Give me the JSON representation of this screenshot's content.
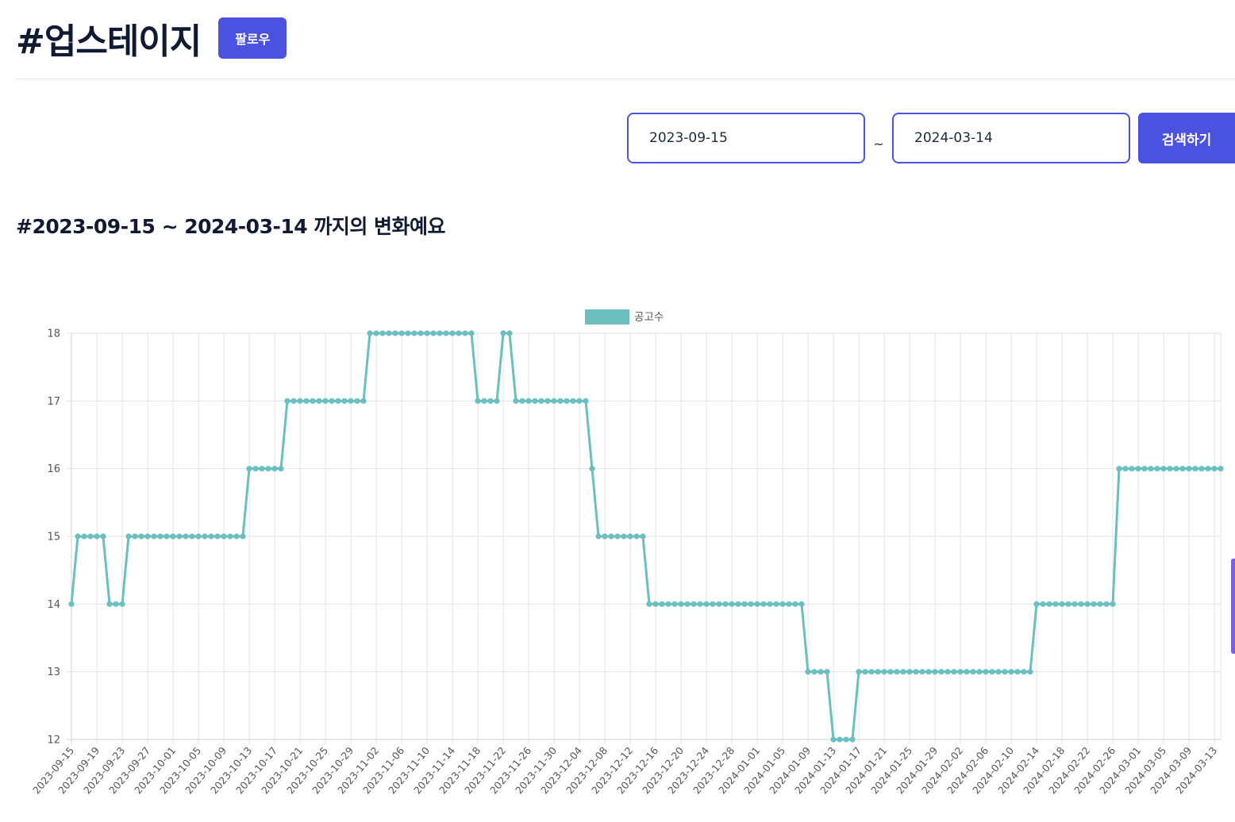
{
  "header": {
    "title": "#업스테이지",
    "follow_label": "팔로우"
  },
  "search": {
    "start_date": "2023-09-15",
    "end_date": "2024-03-14",
    "separator": "~",
    "button_label": "검색하기"
  },
  "section": {
    "heading": "#2023-09-15 ~ 2024-03-14 까지의 변화예요"
  },
  "colors": {
    "accent": "#4b52e0",
    "series": "#6bbfbf"
  },
  "chart_data": {
    "type": "line",
    "title": "",
    "xlabel": "",
    "ylabel": "",
    "ylim": [
      12,
      18
    ],
    "yticks": [
      12,
      13,
      14,
      15,
      16,
      17,
      18
    ],
    "grid": true,
    "legend_position": "top-center",
    "x_start": "2023-09-15",
    "x_end": "2024-03-14",
    "x_tick_labels": [
      "2023-09-15",
      "2023-09-19",
      "2023-09-23",
      "2023-09-27",
      "2023-10-01",
      "2023-10-05",
      "2023-10-09",
      "2023-10-13",
      "2023-10-17",
      "2023-10-21",
      "2023-10-25",
      "2023-10-29",
      "2023-11-02",
      "2023-11-06",
      "2023-11-10",
      "2023-11-14",
      "2023-11-18",
      "2023-11-22",
      "2023-11-26",
      "2023-11-30",
      "2023-12-04",
      "2023-12-08",
      "2023-12-12",
      "2023-12-16",
      "2023-12-20",
      "2023-12-24",
      "2023-12-28",
      "2024-01-01",
      "2024-01-05",
      "2024-01-09",
      "2024-01-13",
      "2024-01-17",
      "2024-01-21",
      "2024-01-25",
      "2024-01-29",
      "2024-02-02",
      "2024-02-06",
      "2024-02-10",
      "2024-02-14",
      "2024-02-18",
      "2024-02-22",
      "2024-02-26",
      "2024-03-01",
      "2024-03-05",
      "2024-03-09",
      "2024-03-13"
    ],
    "series": [
      {
        "name": "공고수",
        "color": "#6bbfbf",
        "segments": [
          {
            "from": "2023-09-15",
            "to": "2023-09-15",
            "value": 14
          },
          {
            "from": "2023-09-16",
            "to": "2023-09-20",
            "value": 15
          },
          {
            "from": "2023-09-21",
            "to": "2023-09-23",
            "value": 14
          },
          {
            "from": "2023-09-24",
            "to": "2023-10-12",
            "value": 15
          },
          {
            "from": "2023-10-13",
            "to": "2023-10-18",
            "value": 16
          },
          {
            "from": "2023-10-19",
            "to": "2023-10-31",
            "value": 17
          },
          {
            "from": "2023-11-01",
            "to": "2023-11-17",
            "value": 18
          },
          {
            "from": "2023-11-18",
            "to": "2023-11-21",
            "value": 17
          },
          {
            "from": "2023-11-22",
            "to": "2023-11-23",
            "value": 18
          },
          {
            "from": "2023-11-24",
            "to": "2023-12-05",
            "value": 17
          },
          {
            "from": "2023-12-06",
            "to": "2023-12-06",
            "value": 16
          },
          {
            "from": "2023-12-07",
            "to": "2023-12-14",
            "value": 15
          },
          {
            "from": "2023-12-15",
            "to": "2024-01-08",
            "value": 14
          },
          {
            "from": "2024-01-09",
            "to": "2024-01-12",
            "value": 13
          },
          {
            "from": "2024-01-13",
            "to": "2024-01-16",
            "value": 12
          },
          {
            "from": "2024-01-17",
            "to": "2024-02-13",
            "value": 13
          },
          {
            "from": "2024-02-14",
            "to": "2024-02-26",
            "value": 14
          },
          {
            "from": "2024-02-27",
            "to": "2024-03-14",
            "value": 16
          }
        ]
      }
    ]
  }
}
